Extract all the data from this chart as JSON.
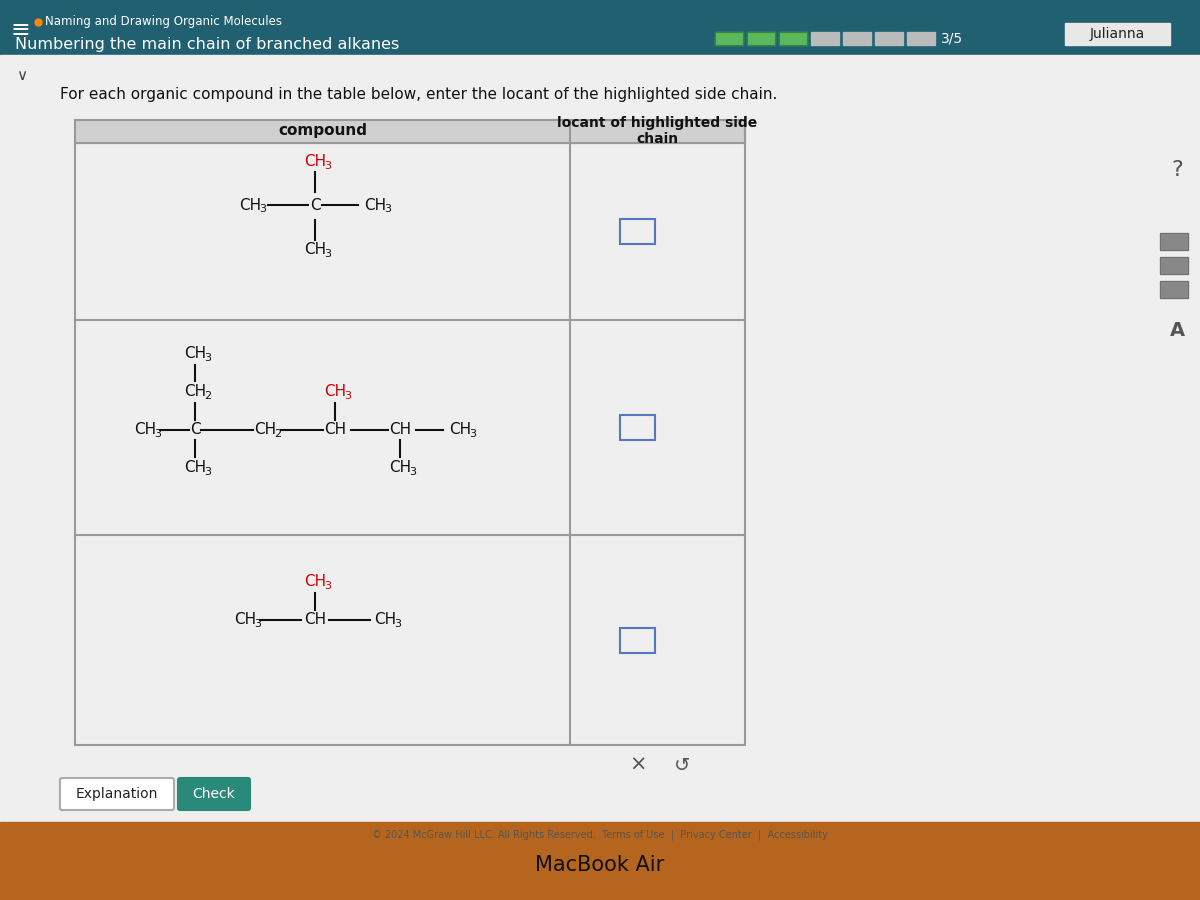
{
  "title_small": "Naming and Drawing Organic Molecules",
  "title_main": "Numbering the main chain of branched alkanes",
  "instruction": "For each organic compound in the table below, enter the locant of the highlighted side chain.",
  "col1_header": "compound",
  "col2_header": "locant of highlighted side\nchain",
  "progress": "3/5",
  "user": "Julianna",
  "footer": "© 2024 McGraw Hill LLC. All Rights Reserved.  Terms of Use  |  Privacy Center  |  Accessibility",
  "macbook": "MacBook Air",
  "header_bg": "#206070",
  "red_color": "#cc0000",
  "dark_color": "#111111",
  "white_bg": "#ffffff",
  "table_bg": "#f2f2f2",
  "header_row_bg": "#d0d0d0",
  "progress_green": "#5cb85c",
  "progress_gray": "#bbbbbb",
  "bottom_bar": "#b5651d",
  "side_panel_bg": "#d4d0c8",
  "content_bg": "#f0efef",
  "input_border": "#5577bb",
  "button_expl_bg": "#f5f5f5",
  "button_check_bg": "#2a8a7a",
  "footer_color": "#555555",
  "table_border": "#999999"
}
